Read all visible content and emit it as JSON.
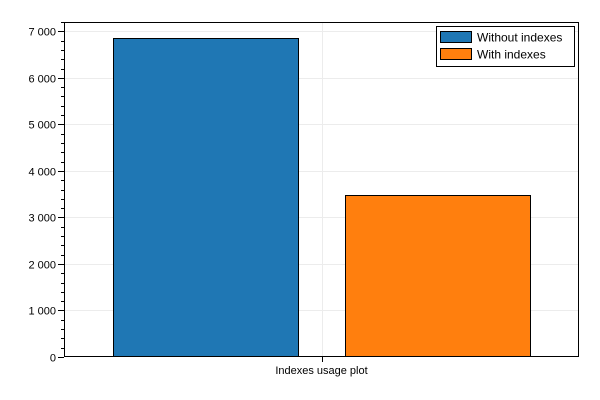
{
  "chart_data": {
    "type": "bar",
    "title": "",
    "xlabel": "",
    "ylabel": "",
    "categories": [
      "Indexes usage plot"
    ],
    "series": [
      {
        "name": "Without indexes",
        "values": [
          6850
        ],
        "color": "#1f77b4"
      },
      {
        "name": "With indexes",
        "values": [
          3480
        ],
        "color": "#ff7f0e"
      }
    ],
    "ylim": [
      0,
      7200
    ],
    "yticks": [
      0,
      1000,
      2000,
      3000,
      4000,
      5000,
      6000,
      7000
    ],
    "ytick_labels": [
      "0",
      "1 000",
      "2 000",
      "3 000",
      "4 000",
      "5 000",
      "6 000",
      "7 000"
    ],
    "grid": true,
    "legend_position": "top-right"
  }
}
